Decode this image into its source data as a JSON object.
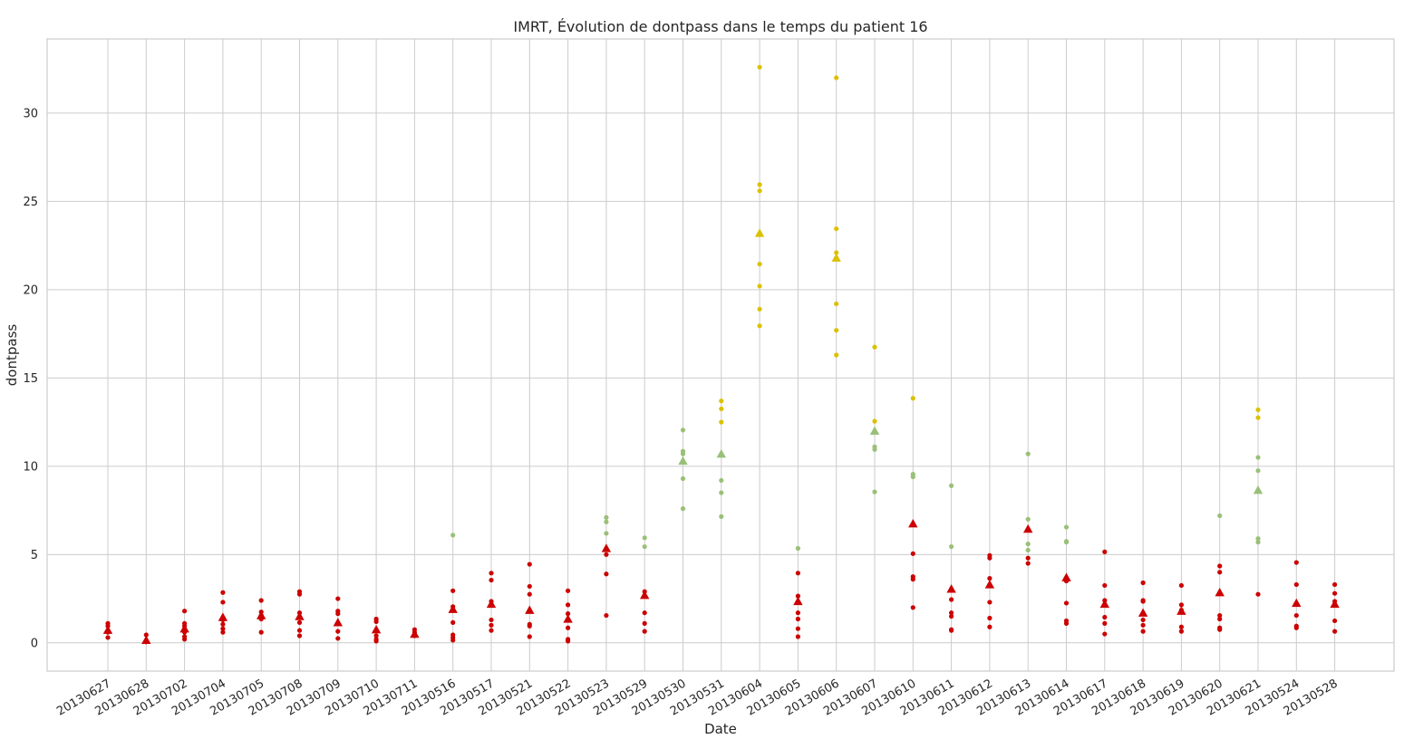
{
  "chart_data": {
    "type": "scatter",
    "title": "IMRT, Évolution de dontpass dans le temps du patient 16",
    "xlabel": "Date",
    "ylabel": "dontpass",
    "ylim": [
      -1.6,
      34.2
    ],
    "yticks": [
      0,
      5,
      10,
      15,
      20,
      25,
      30
    ],
    "grid": true,
    "colors": {
      "red": "#cc0000",
      "green": "#99c078",
      "yellow": "#dbc100"
    },
    "categories": [
      "20130627",
      "20130628",
      "20130702",
      "20130704",
      "20130705",
      "20130708",
      "20130709",
      "20130710",
      "20130711",
      "20130516",
      "20130517",
      "20130521",
      "20130522",
      "20130523",
      "20130529",
      "20130530",
      "20130531",
      "20130604",
      "20130605",
      "20130606",
      "20130607",
      "20130610",
      "20130611",
      "20130612",
      "20130613",
      "20130614",
      "20130617",
      "20130618",
      "20130619",
      "20130620",
      "20130621",
      "20130524",
      "20130528"
    ],
    "groups": [
      {
        "date": "20130627",
        "mean": 0.72,
        "mean_color": "red",
        "points": [
          {
            "y": 1.1,
            "c": "red"
          },
          {
            "y": 0.95,
            "c": "red"
          },
          {
            "y": 0.6,
            "c": "red"
          },
          {
            "y": 0.3,
            "c": "red"
          }
        ]
      },
      {
        "date": "20130628",
        "mean": 0.15,
        "mean_color": "red",
        "points": [
          {
            "y": 0.45,
            "c": "red"
          },
          {
            "y": 0.1,
            "c": "red"
          },
          {
            "y": 0.05,
            "c": "red"
          }
        ]
      },
      {
        "date": "20130702",
        "mean": 0.8,
        "mean_color": "red",
        "points": [
          {
            "y": 1.8,
            "c": "red"
          },
          {
            "y": 1.1,
            "c": "red"
          },
          {
            "y": 0.95,
            "c": "red"
          },
          {
            "y": 0.6,
            "c": "red"
          },
          {
            "y": 0.35,
            "c": "red"
          },
          {
            "y": 0.2,
            "c": "red"
          }
        ]
      },
      {
        "date": "20130704",
        "mean": 1.45,
        "mean_color": "red",
        "points": [
          {
            "y": 2.85,
            "c": "red"
          },
          {
            "y": 2.3,
            "c": "red"
          },
          {
            "y": 1.3,
            "c": "red"
          },
          {
            "y": 1.05,
            "c": "red"
          },
          {
            "y": 0.8,
            "c": "red"
          },
          {
            "y": 0.6,
            "c": "red"
          }
        ]
      },
      {
        "date": "20130705",
        "mean": 1.55,
        "mean_color": "red",
        "points": [
          {
            "y": 2.4,
            "c": "red"
          },
          {
            "y": 1.75,
            "c": "red"
          },
          {
            "y": 1.55,
            "c": "red"
          },
          {
            "y": 1.35,
            "c": "red"
          },
          {
            "y": 0.6,
            "c": "red"
          }
        ]
      },
      {
        "date": "20130708",
        "mean": 1.5,
        "mean_color": "red",
        "points": [
          {
            "y": 2.9,
            "c": "red"
          },
          {
            "y": 2.75,
            "c": "red"
          },
          {
            "y": 1.7,
            "c": "red"
          },
          {
            "y": 1.15,
            "c": "red"
          },
          {
            "y": 0.7,
            "c": "red"
          },
          {
            "y": 0.4,
            "c": "red"
          }
        ]
      },
      {
        "date": "20130709",
        "mean": 1.15,
        "mean_color": "red",
        "points": [
          {
            "y": 2.5,
            "c": "red"
          },
          {
            "y": 1.8,
            "c": "red"
          },
          {
            "y": 1.65,
            "c": "red"
          },
          {
            "y": 0.65,
            "c": "red"
          },
          {
            "y": 0.25,
            "c": "red"
          }
        ]
      },
      {
        "date": "20130710",
        "mean": 0.75,
        "mean_color": "red",
        "points": [
          {
            "y": 1.35,
            "c": "red"
          },
          {
            "y": 1.2,
            "c": "red"
          },
          {
            "y": 0.4,
            "c": "red"
          },
          {
            "y": 0.2,
            "c": "red"
          },
          {
            "y": 0.1,
            "c": "red"
          }
        ]
      },
      {
        "date": "20130711",
        "mean": 0.5,
        "mean_color": "red",
        "points": [
          {
            "y": 0.75,
            "c": "red"
          },
          {
            "y": 0.6,
            "c": "red"
          },
          {
            "y": 0.4,
            "c": "red"
          }
        ]
      },
      {
        "date": "20130516",
        "mean": 1.9,
        "mean_color": "red",
        "points": [
          {
            "y": 6.1,
            "c": "green"
          },
          {
            "y": 2.95,
            "c": "red"
          },
          {
            "y": 2.05,
            "c": "red"
          },
          {
            "y": 1.15,
            "c": "red"
          },
          {
            "y": 0.45,
            "c": "red"
          },
          {
            "y": 0.3,
            "c": "red"
          },
          {
            "y": 0.15,
            "c": "red"
          }
        ]
      },
      {
        "date": "20130517",
        "mean": 2.2,
        "mean_color": "red",
        "points": [
          {
            "y": 3.95,
            "c": "red"
          },
          {
            "y": 3.55,
            "c": "red"
          },
          {
            "y": 2.35,
            "c": "red"
          },
          {
            "y": 1.3,
            "c": "red"
          },
          {
            "y": 1.0,
            "c": "red"
          },
          {
            "y": 0.7,
            "c": "red"
          }
        ]
      },
      {
        "date": "20130521",
        "mean": 1.85,
        "mean_color": "red",
        "points": [
          {
            "y": 4.45,
            "c": "red"
          },
          {
            "y": 3.2,
            "c": "red"
          },
          {
            "y": 2.75,
            "c": "red"
          },
          {
            "y": 1.05,
            "c": "red"
          },
          {
            "y": 0.95,
            "c": "red"
          },
          {
            "y": 0.35,
            "c": "red"
          }
        ]
      },
      {
        "date": "20130522",
        "mean": 1.35,
        "mean_color": "red",
        "points": [
          {
            "y": 2.95,
            "c": "red"
          },
          {
            "y": 2.15,
            "c": "red"
          },
          {
            "y": 1.65,
            "c": "red"
          },
          {
            "y": 0.85,
            "c": "red"
          },
          {
            "y": 0.2,
            "c": "red"
          },
          {
            "y": 0.1,
            "c": "red"
          }
        ]
      },
      {
        "date": "20130523",
        "mean": 5.35,
        "mean_color": "red",
        "points": [
          {
            "y": 7.1,
            "c": "green"
          },
          {
            "y": 6.85,
            "c": "green"
          },
          {
            "y": 6.2,
            "c": "green"
          },
          {
            "y": 5.0,
            "c": "red"
          },
          {
            "y": 3.9,
            "c": "red"
          },
          {
            "y": 1.55,
            "c": "red"
          }
        ]
      },
      {
        "date": "20130529",
        "mean": 2.7,
        "mean_color": "red",
        "points": [
          {
            "y": 5.95,
            "c": "green"
          },
          {
            "y": 5.45,
            "c": "green"
          },
          {
            "y": 2.9,
            "c": "red"
          },
          {
            "y": 1.7,
            "c": "red"
          },
          {
            "y": 1.1,
            "c": "red"
          },
          {
            "y": 0.65,
            "c": "red"
          }
        ]
      },
      {
        "date": "20130530",
        "mean": 10.3,
        "mean_color": "green",
        "points": [
          {
            "y": 12.05,
            "c": "green"
          },
          {
            "y": 10.85,
            "c": "green"
          },
          {
            "y": 10.7,
            "c": "green"
          },
          {
            "y": 9.3,
            "c": "green"
          },
          {
            "y": 7.6,
            "c": "green"
          }
        ]
      },
      {
        "date": "20130531",
        "mean": 10.7,
        "mean_color": "green",
        "points": [
          {
            "y": 13.7,
            "c": "yellow"
          },
          {
            "y": 13.25,
            "c": "yellow"
          },
          {
            "y": 12.5,
            "c": "yellow"
          },
          {
            "y": 9.2,
            "c": "green"
          },
          {
            "y": 8.5,
            "c": "green"
          },
          {
            "y": 7.15,
            "c": "green"
          }
        ]
      },
      {
        "date": "20130604",
        "mean": 23.2,
        "mean_color": "yellow",
        "points": [
          {
            "y": 32.6,
            "c": "yellow"
          },
          {
            "y": 25.95,
            "c": "yellow"
          },
          {
            "y": 25.6,
            "c": "yellow"
          },
          {
            "y": 21.45,
            "c": "yellow"
          },
          {
            "y": 20.2,
            "c": "yellow"
          },
          {
            "y": 18.9,
            "c": "yellow"
          },
          {
            "y": 17.95,
            "c": "yellow"
          }
        ]
      },
      {
        "date": "20130605",
        "mean": 2.35,
        "mean_color": "red",
        "points": [
          {
            "y": 5.35,
            "c": "green"
          },
          {
            "y": 3.95,
            "c": "red"
          },
          {
            "y": 2.65,
            "c": "red"
          },
          {
            "y": 1.7,
            "c": "red"
          },
          {
            "y": 1.35,
            "c": "red"
          },
          {
            "y": 0.8,
            "c": "red"
          },
          {
            "y": 0.35,
            "c": "red"
          }
        ]
      },
      {
        "date": "20130606",
        "mean": 21.8,
        "mean_color": "yellow",
        "points": [
          {
            "y": 32.0,
            "c": "yellow"
          },
          {
            "y": 23.45,
            "c": "yellow"
          },
          {
            "y": 22.1,
            "c": "yellow"
          },
          {
            "y": 19.2,
            "c": "yellow"
          },
          {
            "y": 17.7,
            "c": "yellow"
          },
          {
            "y": 16.3,
            "c": "yellow"
          }
        ]
      },
      {
        "date": "20130607",
        "mean": 12.0,
        "mean_color": "green",
        "points": [
          {
            "y": 16.75,
            "c": "yellow"
          },
          {
            "y": 12.55,
            "c": "yellow"
          },
          {
            "y": 11.1,
            "c": "green"
          },
          {
            "y": 10.95,
            "c": "green"
          },
          {
            "y": 8.55,
            "c": "green"
          }
        ]
      },
      {
        "date": "20130610",
        "mean": 6.75,
        "mean_color": "red",
        "points": [
          {
            "y": 13.85,
            "c": "yellow"
          },
          {
            "y": 9.55,
            "c": "green"
          },
          {
            "y": 9.4,
            "c": "green"
          },
          {
            "y": 5.05,
            "c": "red"
          },
          {
            "y": 3.75,
            "c": "red"
          },
          {
            "y": 3.6,
            "c": "red"
          },
          {
            "y": 2.0,
            "c": "red"
          }
        ]
      },
      {
        "date": "20130611",
        "mean": 3.05,
        "mean_color": "red",
        "points": [
          {
            "y": 8.9,
            "c": "green"
          },
          {
            "y": 5.45,
            "c": "green"
          },
          {
            "y": 2.45,
            "c": "red"
          },
          {
            "y": 1.7,
            "c": "red"
          },
          {
            "y": 1.5,
            "c": "red"
          },
          {
            "y": 0.75,
            "c": "red"
          },
          {
            "y": 0.7,
            "c": "red"
          }
        ]
      },
      {
        "date": "20130612",
        "mean": 3.3,
        "mean_color": "red",
        "points": [
          {
            "y": 4.95,
            "c": "red"
          },
          {
            "y": 4.8,
            "c": "red"
          },
          {
            "y": 3.65,
            "c": "red"
          },
          {
            "y": 2.3,
            "c": "red"
          },
          {
            "y": 1.4,
            "c": "red"
          },
          {
            "y": 0.9,
            "c": "red"
          }
        ]
      },
      {
        "date": "20130613",
        "mean": 6.45,
        "mean_color": "red",
        "points": [
          {
            "y": 10.7,
            "c": "green"
          },
          {
            "y": 7.0,
            "c": "green"
          },
          {
            "y": 5.6,
            "c": "green"
          },
          {
            "y": 5.25,
            "c": "green"
          },
          {
            "y": 4.8,
            "c": "red"
          },
          {
            "y": 4.5,
            "c": "red"
          }
        ]
      },
      {
        "date": "20130614",
        "mean": 3.7,
        "mean_color": "red",
        "points": [
          {
            "y": 6.55,
            "c": "green"
          },
          {
            "y": 5.75,
            "c": "green"
          },
          {
            "y": 5.7,
            "c": "green"
          },
          {
            "y": 3.5,
            "c": "red"
          },
          {
            "y": 2.25,
            "c": "red"
          },
          {
            "y": 1.25,
            "c": "red"
          },
          {
            "y": 1.1,
            "c": "red"
          }
        ]
      },
      {
        "date": "20130617",
        "mean": 2.2,
        "mean_color": "red",
        "points": [
          {
            "y": 5.15,
            "c": "red"
          },
          {
            "y": 3.25,
            "c": "red"
          },
          {
            "y": 2.4,
            "c": "red"
          },
          {
            "y": 1.45,
            "c": "red"
          },
          {
            "y": 1.1,
            "c": "red"
          },
          {
            "y": 0.5,
            "c": "red"
          }
        ]
      },
      {
        "date": "20130618",
        "mean": 1.7,
        "mean_color": "red",
        "points": [
          {
            "y": 3.4,
            "c": "red"
          },
          {
            "y": 2.4,
            "c": "red"
          },
          {
            "y": 2.35,
            "c": "red"
          },
          {
            "y": 1.3,
            "c": "red"
          },
          {
            "y": 1.0,
            "c": "red"
          },
          {
            "y": 0.65,
            "c": "red"
          }
        ]
      },
      {
        "date": "20130619",
        "mean": 1.8,
        "mean_color": "red",
        "points": [
          {
            "y": 3.25,
            "c": "red"
          },
          {
            "y": 2.15,
            "c": "red"
          },
          {
            "y": 1.85,
            "c": "red"
          },
          {
            "y": 0.9,
            "c": "red"
          },
          {
            "y": 0.65,
            "c": "red"
          }
        ]
      },
      {
        "date": "20130620",
        "mean": 2.85,
        "mean_color": "red",
        "points": [
          {
            "y": 7.2,
            "c": "green"
          },
          {
            "y": 4.35,
            "c": "red"
          },
          {
            "y": 4.0,
            "c": "red"
          },
          {
            "y": 1.55,
            "c": "red"
          },
          {
            "y": 1.35,
            "c": "red"
          },
          {
            "y": 0.85,
            "c": "red"
          },
          {
            "y": 0.75,
            "c": "red"
          }
        ]
      },
      {
        "date": "20130621",
        "mean": 8.65,
        "mean_color": "green",
        "points": [
          {
            "y": 13.2,
            "c": "yellow"
          },
          {
            "y": 12.75,
            "c": "yellow"
          },
          {
            "y": 10.5,
            "c": "green"
          },
          {
            "y": 9.75,
            "c": "green"
          },
          {
            "y": 5.9,
            "c": "green"
          },
          {
            "y": 5.7,
            "c": "green"
          },
          {
            "y": 2.75,
            "c": "red"
          }
        ]
      },
      {
        "date": "20130524",
        "mean": 2.25,
        "mean_color": "red",
        "points": [
          {
            "y": 4.55,
            "c": "red"
          },
          {
            "y": 3.3,
            "c": "red"
          },
          {
            "y": 1.55,
            "c": "red"
          },
          {
            "y": 0.95,
            "c": "red"
          },
          {
            "y": 0.85,
            "c": "red"
          }
        ]
      },
      {
        "date": "20130528",
        "mean": 2.2,
        "mean_color": "red",
        "points": [
          {
            "y": 3.3,
            "c": "red"
          },
          {
            "y": 2.8,
            "c": "red"
          },
          {
            "y": 2.35,
            "c": "red"
          },
          {
            "y": 1.25,
            "c": "red"
          },
          {
            "y": 0.65,
            "c": "red"
          }
        ]
      }
    ]
  }
}
